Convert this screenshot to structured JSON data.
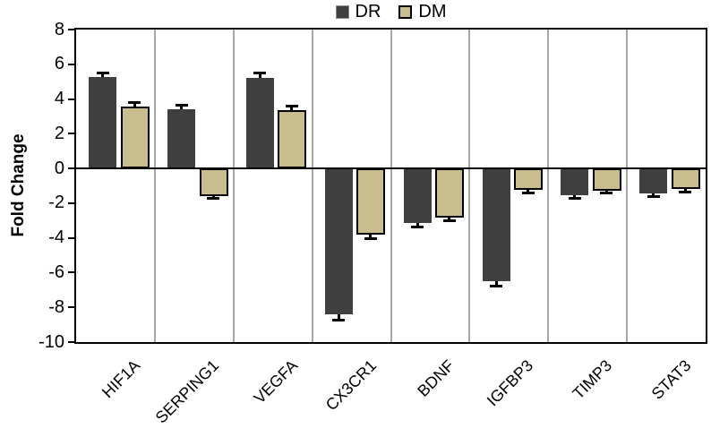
{
  "chart_data": {
    "type": "bar",
    "title": "",
    "xlabel": "",
    "ylabel": "Fold Change",
    "ylim": [
      -10,
      8
    ],
    "ytick_step": 2,
    "grid": "vertical-separators-between-categories",
    "legend_position": "top-center",
    "categories": [
      "HIF1A",
      "SERPING1",
      "VEGFA",
      "CX3CR1",
      "BDNF",
      "IGFBP3",
      "TIMP3",
      "STAT3"
    ],
    "series": [
      {
        "name": "DR",
        "color": "#3f3f3f",
        "border_color": "#3f3f3f",
        "values": [
          5.25,
          3.4,
          5.2,
          -8.4,
          -3.15,
          -6.5,
          -1.55,
          -1.45
        ],
        "errors": [
          0.3,
          0.25,
          0.3,
          0.35,
          0.25,
          0.3,
          0.2,
          0.2
        ]
      },
      {
        "name": "DM",
        "color": "#c9bd8e",
        "border_color": "#000000",
        "values": [
          3.55,
          -1.6,
          3.35,
          -3.8,
          -2.85,
          -1.25,
          -1.3,
          -1.2
        ],
        "errors": [
          0.25,
          0.15,
          0.25,
          0.25,
          0.2,
          0.2,
          0.15,
          0.2
        ]
      }
    ]
  },
  "colors": {
    "background": "#ffffff",
    "axis": "#000000",
    "gridline": "#a6a6a6",
    "error_bar": "#000000"
  }
}
